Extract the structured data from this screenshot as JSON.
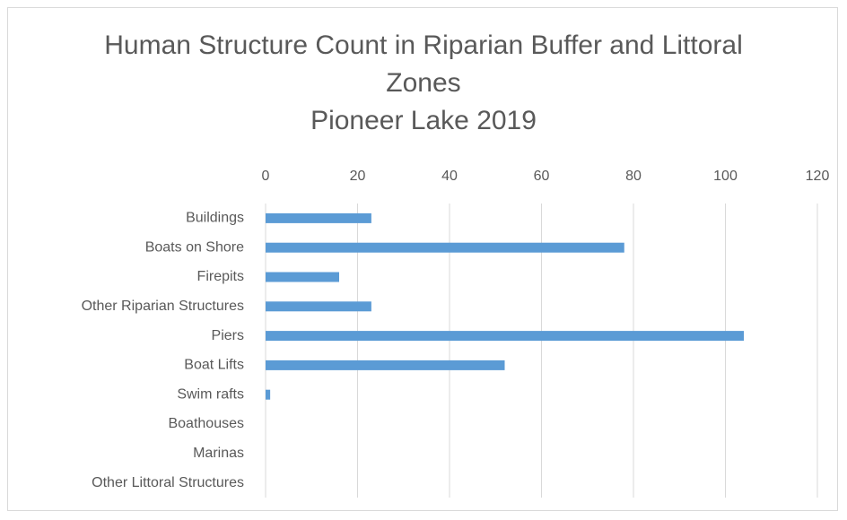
{
  "chart_data": {
    "type": "bar",
    "orientation": "horizontal",
    "title": "Human Structure Count in Riparian Buffer and Littoral Zones",
    "subtitle": "Pioneer Lake 2019",
    "categories": [
      "Buildings",
      "Boats on Shore",
      "Firepits",
      "Other Riparian Structures",
      "Piers",
      "Boat Lifts",
      "Swim rafts",
      "Boathouses",
      "Marinas",
      "Other Littoral Structures"
    ],
    "values": [
      23,
      78,
      16,
      23,
      104,
      52,
      1,
      0,
      0,
      0
    ],
    "color": "#5b9bd5",
    "xlim": [
      0,
      120
    ],
    "xticks": [
      0,
      20,
      40,
      60,
      80,
      100,
      120
    ],
    "grid": true
  }
}
